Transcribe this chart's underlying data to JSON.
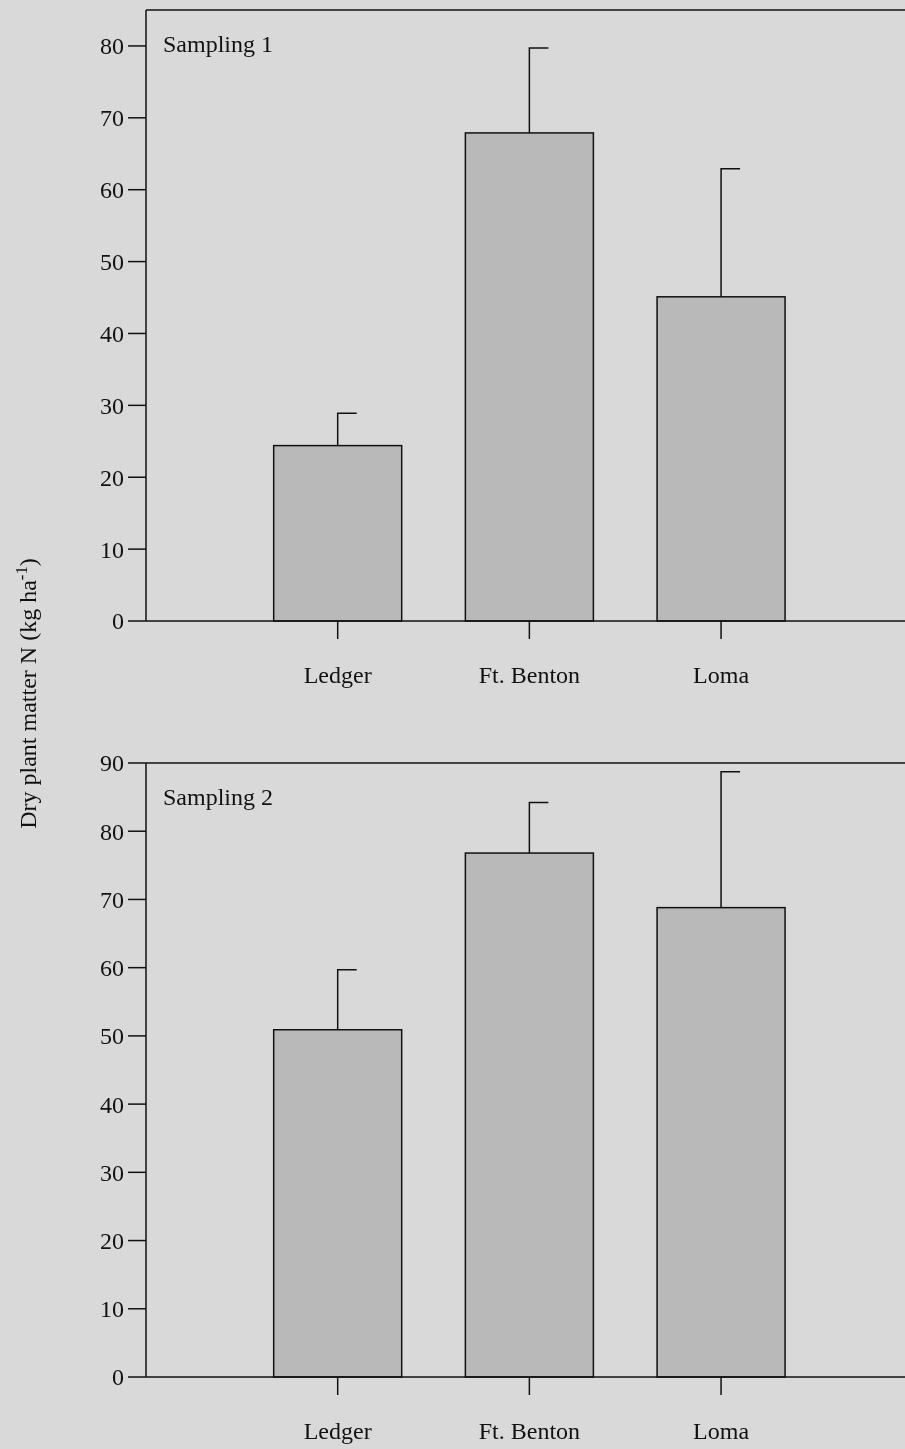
{
  "chart_data": [
    {
      "type": "bar",
      "ylabel": "Dry plant matter N (kg ha$^{-1}$)",
      "annotations": [
        "Sampling 1"
      ],
      "categories": [
        "Ledger",
        "Ft. Benton",
        "Loma"
      ],
      "values": [
        24.4,
        67.9,
        45.1
      ],
      "errors": [
        [
          24.4,
          28.9
        ],
        [
          67.9,
          79.7
        ],
        [
          45.1,
          62.9
        ]
      ],
      "color": "#b9b9b9",
      "ylim": [
        0,
        85
      ],
      "yticks": [
        0,
        10,
        20,
        30,
        40,
        50,
        60,
        70,
        80
      ],
      "grid": false
    },
    {
      "type": "bar",
      "annotations": [
        "Sampling 2"
      ],
      "categories": [
        "Ledger",
        "Ft. Benton",
        "Loma"
      ],
      "values": [
        50.9,
        76.8,
        68.8
      ],
      "errors": [
        [
          50.9,
          59.7
        ],
        [
          76.8,
          84.2
        ],
        [
          68.8,
          88.7
        ]
      ],
      "color": "#b9b9b9",
      "ylim": [
        0,
        90
      ],
      "yticks": [
        0,
        10,
        20,
        30,
        40,
        50,
        60,
        70,
        80,
        90
      ],
      "grid": false
    }
  ]
}
